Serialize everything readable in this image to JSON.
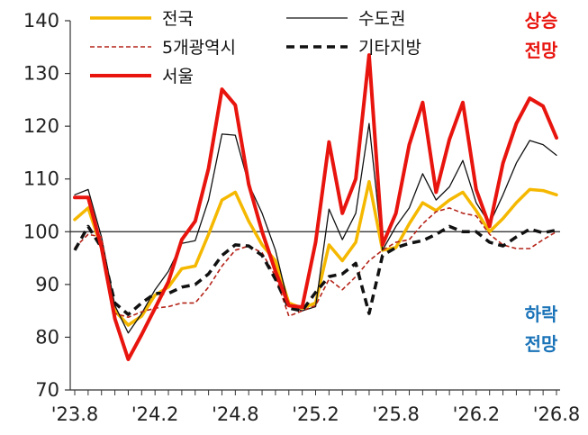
{
  "chart_data": {
    "type": "line",
    "title": "",
    "xlabel": "",
    "ylabel": "",
    "ylim": [
      70,
      140
    ],
    "yticks": [
      70,
      80,
      90,
      100,
      110,
      120,
      130,
      140
    ],
    "x": [
      "'23.8",
      "'23.9",
      "'23.10",
      "'23.11",
      "'23.12",
      "'24.1",
      "'24.2",
      "'24.3",
      "'24.4",
      "'24.5",
      "'24.6",
      "'24.7",
      "'24.8",
      "'24.9",
      "'24.10",
      "'24.11",
      "'24.12",
      "'25.1",
      "'25.2",
      "'25.3",
      "'25.4",
      "'25.5",
      "'25.6",
      "'25.7",
      "'25.8",
      "'25.9",
      "'25.10",
      "'25.11",
      "'25.12",
      "'26.1",
      "'26.2",
      "'26.3",
      "'26.4",
      "'26.5",
      "'26.6",
      "'26.7",
      "'26.8"
    ],
    "xtick_labels": [
      "'23.8",
      "'24.2",
      "'24.8",
      "'25.2",
      "'25.8",
      "'26.2",
      "'26.8"
    ],
    "reference_line": 100,
    "grid": false,
    "legend_position": "top",
    "series": [
      {
        "name": "전국",
        "color": "#f5b800",
        "width": 3.5,
        "dash": "",
        "values": [
          102.3,
          104.5,
          97.0,
          85.0,
          82.3,
          84.0,
          88.0,
          89.5,
          93.0,
          93.5,
          99.5,
          106.0,
          107.5,
          102.0,
          97.5,
          94.5,
          86.5,
          85.5,
          86.5,
          97.5,
          94.5,
          98.0,
          109.5,
          96.5,
          97.0,
          101.5,
          105.5,
          104.0,
          106.0,
          107.5,
          104.0,
          100.0,
          102.5,
          105.5,
          108.0,
          107.8,
          107.0
        ]
      },
      {
        "name": "수도권",
        "color": "#111111",
        "width": 1.3,
        "dash": "",
        "values": [
          107.0,
          108.0,
          99.0,
          86.0,
          80.8,
          84.5,
          89.0,
          92.5,
          97.8,
          98.3,
          106.0,
          118.5,
          118.3,
          109.0,
          103.5,
          96.5,
          86.0,
          85.0,
          85.8,
          104.3,
          98.5,
          103.5,
          120.5,
          96.5,
          101.0,
          104.5,
          111.0,
          106.0,
          108.5,
          113.5,
          105.5,
          101.5,
          107.0,
          113.0,
          117.3,
          116.5,
          114.5
        ]
      },
      {
        "name": "5개광역시",
        "color": "#b42318",
        "width": 1.6,
        "dash": "5,3",
        "values": [
          97.0,
          99.5,
          99.0,
          84.5,
          83.8,
          84.8,
          85.5,
          85.8,
          86.5,
          86.5,
          89.5,
          93.5,
          96.5,
          97.3,
          96.0,
          91.5,
          84.0,
          85.0,
          86.0,
          91.0,
          89.0,
          91.5,
          94.5,
          96.5,
          98.0,
          98.5,
          101.5,
          103.8,
          104.5,
          103.5,
          103.0,
          99.5,
          97.5,
          96.8,
          96.8,
          98.5,
          100.0
        ]
      },
      {
        "name": "기타지방",
        "color": "#111111",
        "width": 3.5,
        "dash": "9,6",
        "values": [
          96.5,
          101.0,
          97.0,
          86.5,
          84.3,
          86.5,
          88.3,
          88.3,
          89.5,
          90.0,
          92.0,
          95.5,
          97.5,
          97.3,
          95.5,
          91.0,
          85.5,
          85.0,
          88.5,
          91.5,
          92.0,
          94.0,
          84.5,
          95.5,
          97.0,
          97.8,
          98.3,
          99.5,
          101.0,
          100.0,
          100.0,
          98.0,
          97.3,
          99.0,
          100.5,
          99.8,
          100.3
        ]
      },
      {
        "name": "서울",
        "color": "#e8140e",
        "width": 4,
        "dash": "",
        "values": [
          106.5,
          106.5,
          97.0,
          83.5,
          75.8,
          80.5,
          85.5,
          90.5,
          98.5,
          102.0,
          112.0,
          127.0,
          124.0,
          109.0,
          100.0,
          92.5,
          86.0,
          85.7,
          98.0,
          117.0,
          103.5,
          110.0,
          133.5,
          97.5,
          103.5,
          116.5,
          124.5,
          107.5,
          117.5,
          124.5,
          108.0,
          101.0,
          113.0,
          120.5,
          125.3,
          123.8,
          117.8
        ]
      }
    ],
    "annotations": [
      {
        "text": "상승\n전망",
        "position": "top-right",
        "color": "#e8140e"
      },
      {
        "text": "하락\n전망",
        "position": "bottom-right",
        "color": "#1a73b8"
      }
    ]
  }
}
